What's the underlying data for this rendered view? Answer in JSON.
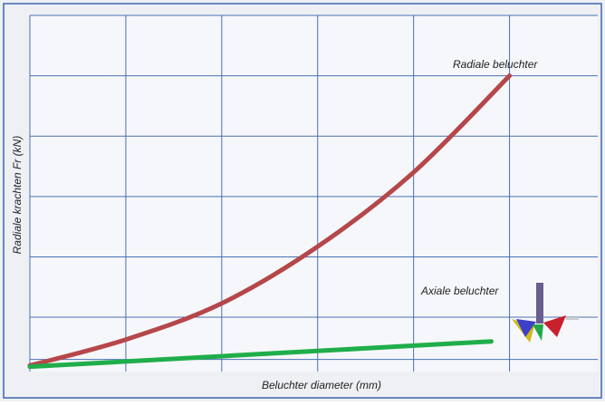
{
  "chart_data": {
    "type": "line",
    "xlabel": "Beluchter diameter (mm)",
    "ylabel": "Radiale krachten Fr (kN)",
    "xlim": [
      0,
      5.92
    ],
    "xticks": [
      0,
      1,
      2,
      3,
      4,
      5
    ],
    "ylim": [
      0,
      5.9
    ],
    "yticks": [
      0.2,
      0.9,
      1.9,
      2.9,
      3.9,
      4.9,
      5.9
    ],
    "grid": true,
    "series": [
      {
        "name": "Radiale beluchter",
        "color": "#b5474a",
        "x": [
          0,
          1,
          2,
          3,
          4,
          5
        ],
        "values": [
          0.1,
          0.53,
          1.13,
          2.07,
          3.3,
          4.9
        ]
      },
      {
        "name": "Axiale beluchter",
        "color": "#1fae4a",
        "x": [
          0,
          4.81
        ],
        "values": [
          0.08,
          0.5
        ]
      }
    ]
  }
}
